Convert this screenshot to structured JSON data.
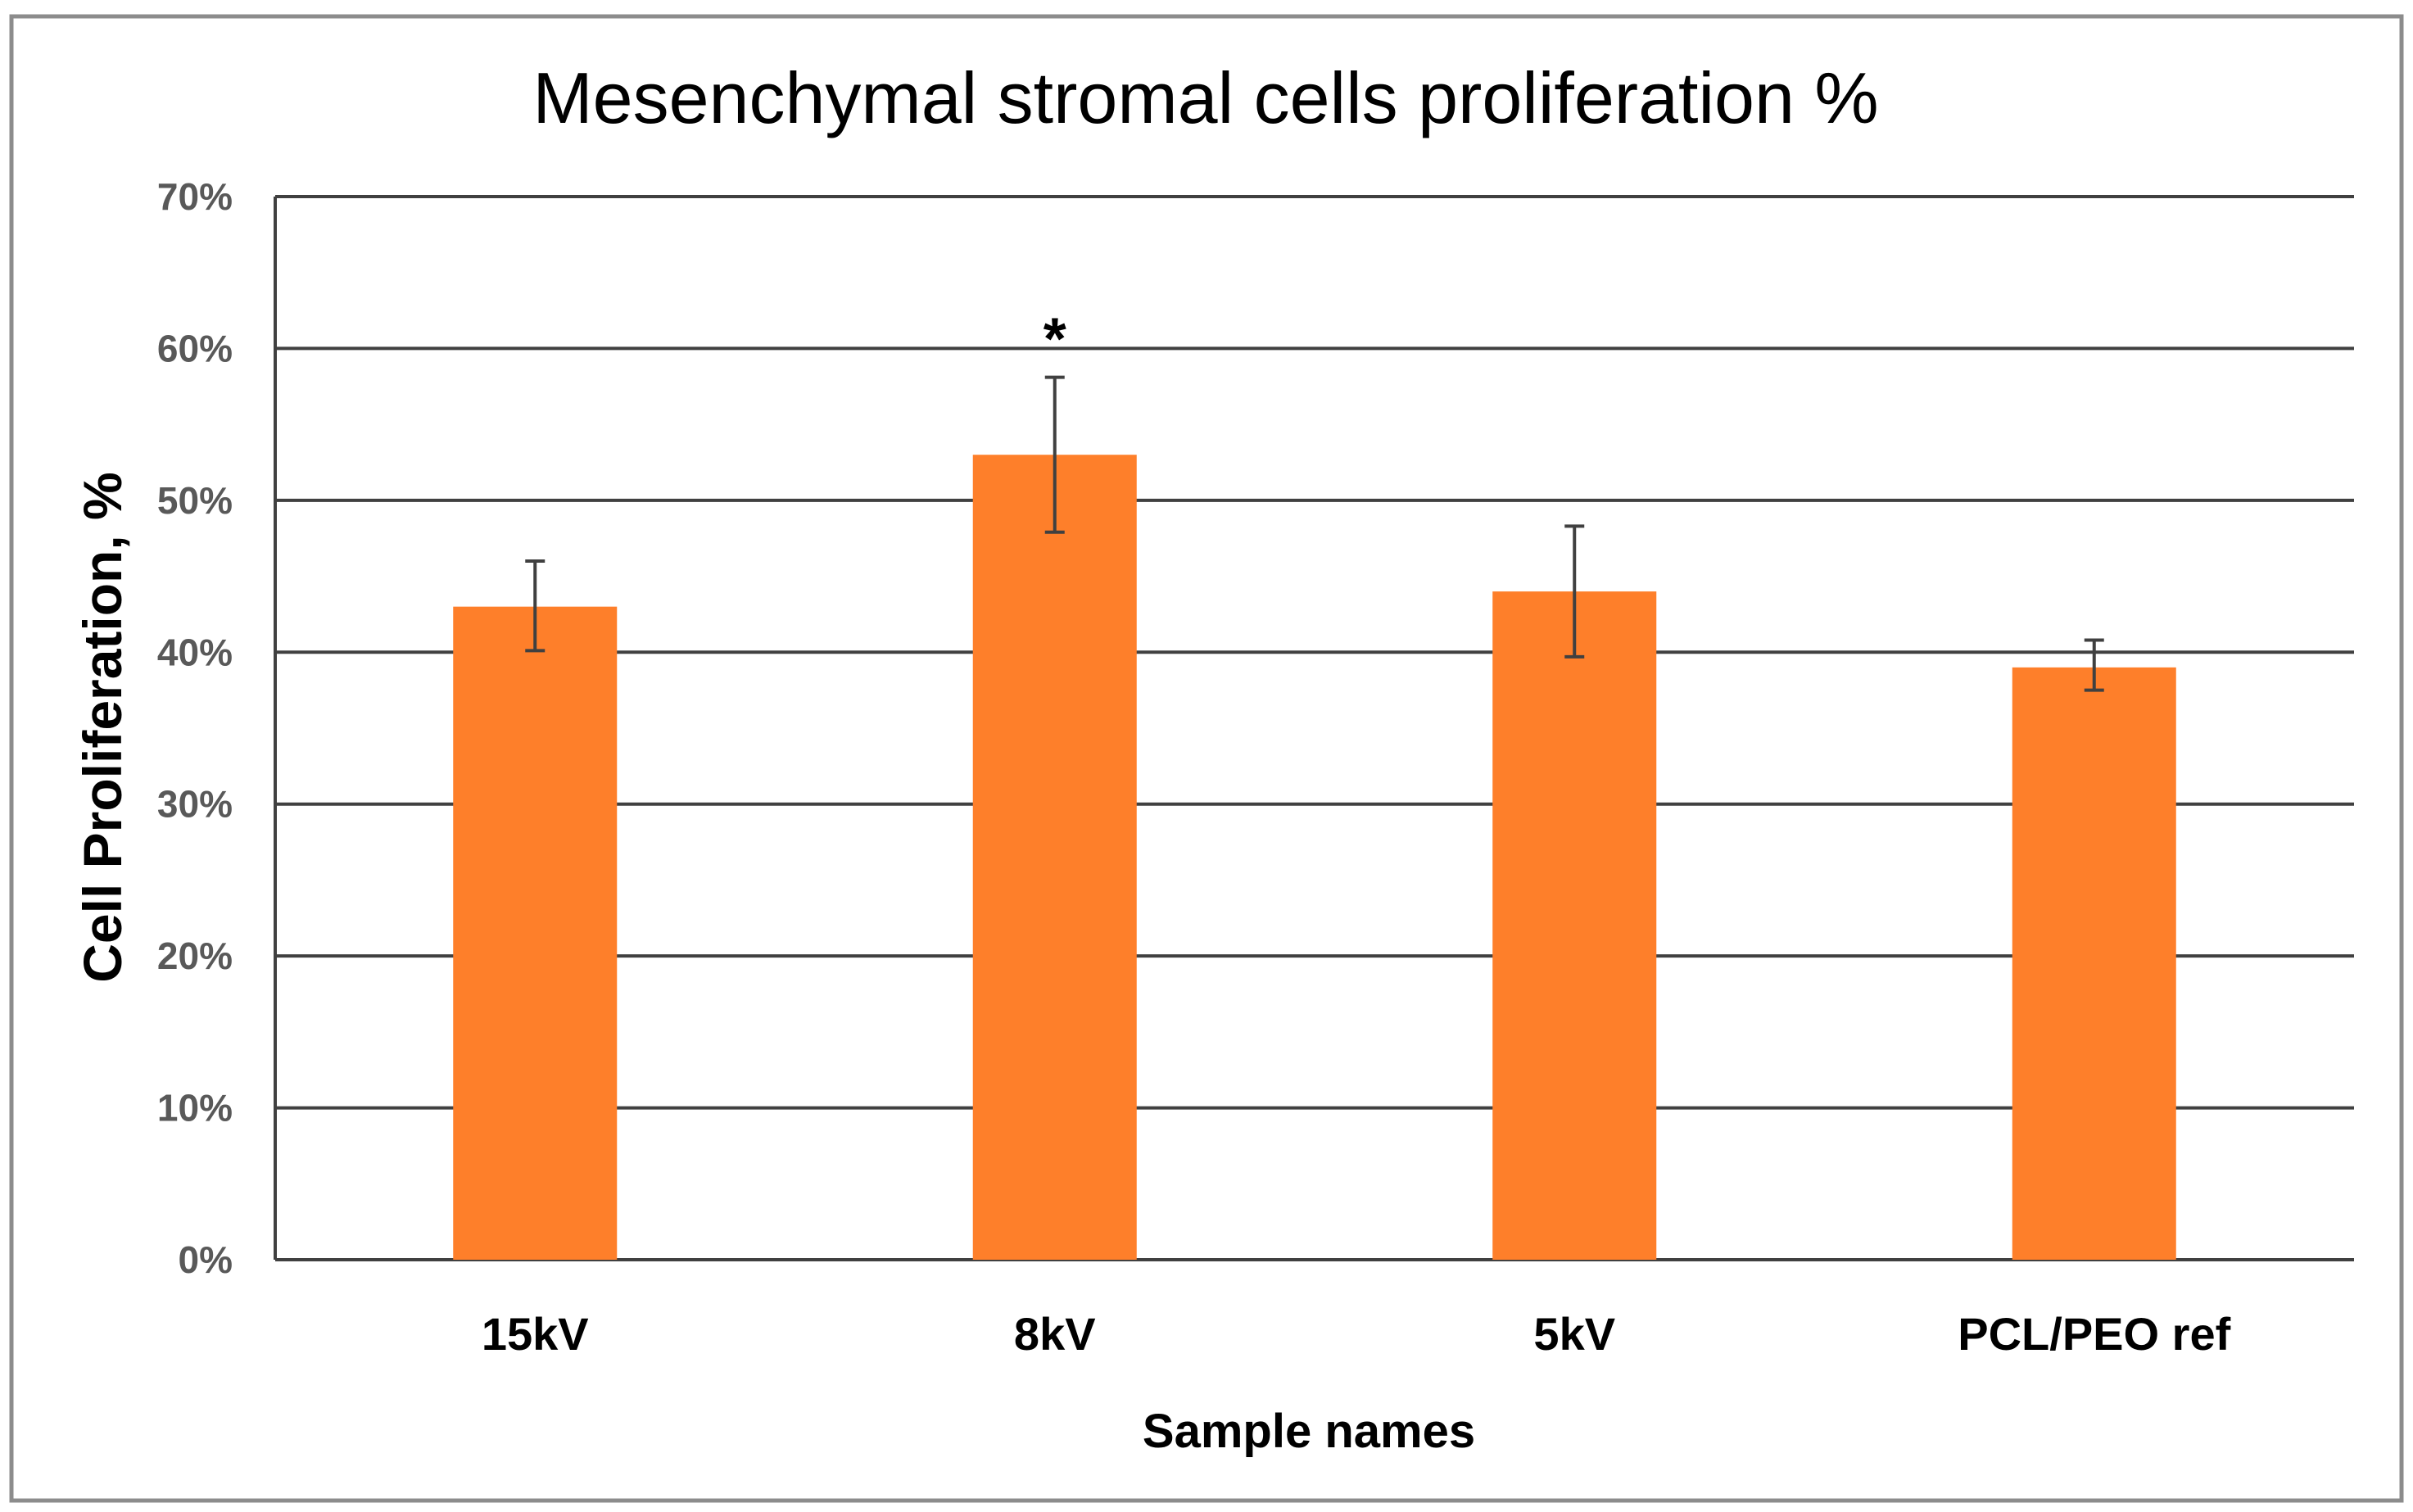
{
  "chart_data": {
    "type": "bar",
    "title": "Mesenchymal stromal cells proliferation %",
    "xlabel": "Sample names",
    "ylabel": "Cell Proliferation, %",
    "ylim": [
      0,
      70
    ],
    "yticks": [
      0,
      10,
      20,
      30,
      40,
      50,
      60,
      70
    ],
    "ytick_labels": [
      "0%",
      "10%",
      "20%",
      "30%",
      "40%",
      "50%",
      "60%",
      "70%"
    ],
    "categories": [
      "15kV",
      "8kV",
      "5kV",
      "PCL/PEO ref"
    ],
    "series": [
      {
        "name": "Cell Proliferation",
        "values": [
          43,
          53,
          44,
          39
        ],
        "error_low": [
          40.1,
          47.9,
          39.7,
          37.5
        ],
        "error_high": [
          46,
          58.1,
          48.3,
          40.8
        ]
      }
    ],
    "annotations": [
      {
        "category": "8kV",
        "text": "*"
      }
    ],
    "grid": true,
    "legend": "none",
    "colors": {
      "bar": "#FE7F2A",
      "grid": "#404040",
      "error_bar": "#404040",
      "frame": "#8C8C8C",
      "tick_label": "#595959"
    }
  }
}
